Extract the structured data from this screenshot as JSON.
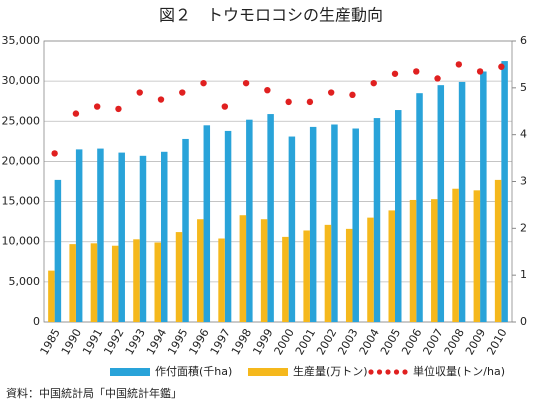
{
  "chart_data": {
    "type": "bar-line",
    "title": "図２　トウモロコシの生産動向",
    "source": "資料：中国統計局「中国統計年鑑」",
    "categories": [
      "1985",
      "1990",
      "1991",
      "1992",
      "1993",
      "1994",
      "1995",
      "1996",
      "1997",
      "1998",
      "1999",
      "2000",
      "2001",
      "2002",
      "2003",
      "2004",
      "2005",
      "2006",
      "2007",
      "2008",
      "2009",
      "2010"
    ],
    "series": [
      {
        "name": "作付面積(千ha)",
        "color": "#29a3d9",
        "kind": "bar",
        "values": [
          17700,
          21500,
          21600,
          21100,
          20700,
          21200,
          22800,
          24500,
          23800,
          25200,
          25900,
          23100,
          24300,
          24600,
          24100,
          25400,
          26400,
          28500,
          29500,
          29900,
          31200,
          32500
        ]
      },
      {
        "name": "生産量(万トン)",
        "color": "#f5b81c",
        "kind": "bar",
        "values": [
          6400,
          9700,
          9800,
          9500,
          10300,
          9900,
          11200,
          12800,
          10400,
          13300,
          12800,
          10600,
          11400,
          12100,
          11600,
          13000,
          13900,
          15200,
          15300,
          16600,
          16400,
          17700
        ]
      },
      {
        "name": "単位収量(トン/ha)",
        "color": "#e02020",
        "kind": "dots",
        "axis": "y2",
        "values": [
          3.6,
          4.45,
          4.6,
          4.55,
          4.9,
          4.75,
          4.9,
          5.1,
          4.6,
          5.1,
          4.95,
          4.7,
          4.7,
          4.9,
          4.85,
          5.1,
          5.3,
          5.35,
          5.2,
          5.5,
          5.35,
          5.45
        ]
      }
    ],
    "ylim": [
      0,
      35000
    ],
    "yticks": [
      0,
      {
        "value": 5000,
        "label": "5,000"
      },
      {
        "value": 10000,
        "label": "10,000"
      },
      {
        "value": 15000,
        "label": "15,000"
      },
      {
        "value": 20000,
        "label": "20,000"
      },
      {
        "value": 25000,
        "label": "25,000"
      },
      {
        "value": 30000,
        "label": "30,000"
      },
      {
        "value": 35000,
        "label": "35,000"
      }
    ],
    "y2lim": [
      0,
      6
    ],
    "y2ticks": [
      0,
      1,
      2,
      3,
      4,
      5,
      6
    ],
    "grid": true
  }
}
